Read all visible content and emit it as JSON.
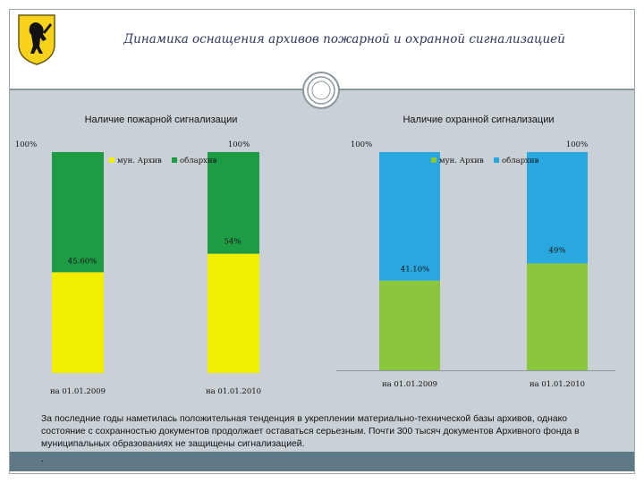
{
  "slide": {
    "title": "Динамика  оснащения архивов пожарной и охранной сигнализацией",
    "note": "За последние годы наметилась положительная тенденция в укреплении материально-технической базы архивов, однако состояние с сохранностью документов продолжает оставаться серьезным. Почти  300 тысяч документов Архивного фонда  в муниципальных образованиях не защищены сигнализацией.",
    "note_dot": "."
  },
  "colors": {
    "fire_low": "#f2ee00",
    "fire_high": "#1e9b45",
    "security_low": "#8cc63f",
    "security_high": "#2aa7df",
    "header_text": "#2f3a5a",
    "band": "#c9d1d6"
  },
  "chart_data": [
    {
      "type": "bar",
      "stacked": true,
      "title": "Наличие пожарной сигнализации",
      "categories": [
        "на 01.01.2009",
        "на 01.01.2010"
      ],
      "series": [
        {
          "name": "мун. Архив",
          "color": "#f2ee00",
          "values": [
            45.6,
            54
          ]
        },
        {
          "name": "облархив",
          "color": "#1e9b45",
          "values": [
            54.4,
            46
          ]
        }
      ],
      "data_labels": [
        "45.60%",
        "54%"
      ],
      "top_labels": [
        "100%",
        "100%"
      ],
      "ylim": [
        0,
        100
      ],
      "legend": "top"
    },
    {
      "type": "bar",
      "stacked": true,
      "title": "Наличие охранной сигнализации",
      "categories": [
        "на 01.01.2009",
        "на 01.01.2010"
      ],
      "series": [
        {
          "name": "мун. Архив",
          "color": "#8cc63f",
          "values": [
            41.1,
            49
          ]
        },
        {
          "name": "облархив",
          "color": "#2aa7df",
          "values": [
            58.9,
            51
          ]
        }
      ],
      "data_labels": [
        "41.10%",
        "49%"
      ],
      "top_labels": [
        "100%",
        "100%"
      ],
      "ylim": [
        0,
        100
      ],
      "legend": "top"
    }
  ]
}
